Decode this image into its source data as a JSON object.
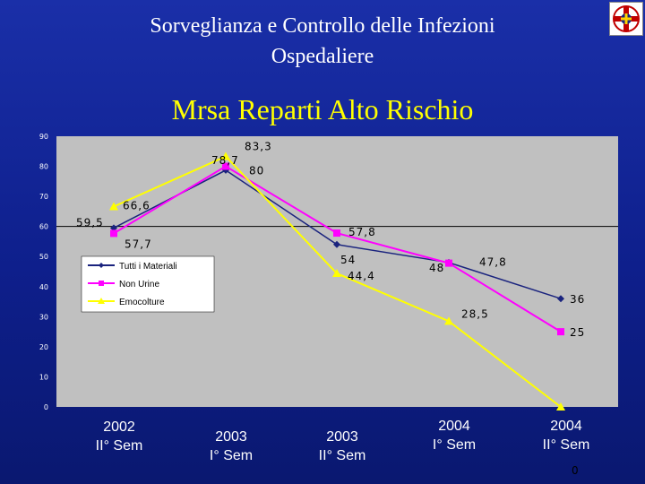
{
  "header": {
    "title_line1": "Sorveglianza e Controllo delle Infezioni",
    "title_line2": "Ospedaliere",
    "logo_icon": "hospital-cross-logo-icon"
  },
  "colors": {
    "background": "#12249a",
    "plot_area": "#c0c0c0",
    "series_tutti": "#1a237e",
    "series_non_urine": "#ff00ff",
    "series_emocolture": "#ffff00",
    "title": "#ffffff",
    "subtitle": "#ffff00"
  },
  "chart_data": {
    "type": "line",
    "title": "Mrsa Reparti Alto Rischio",
    "categories": [
      [
        "2002",
        "II° Sem"
      ],
      [
        "2003",
        "I° Sem"
      ],
      [
        "2003",
        "II° Sem"
      ],
      [
        "2004",
        "I° Sem"
      ],
      [
        "2004",
        "II° Sem"
      ]
    ],
    "ylim": [
      0,
      90
    ],
    "yticks": [
      0,
      10,
      20,
      30,
      40,
      50,
      60,
      70,
      80,
      90
    ],
    "ytick_labels": [
      "0",
      "10",
      "20",
      "30",
      "40",
      "50",
      "60",
      "70",
      "80",
      "90"
    ],
    "grid": false,
    "reference_line": 60,
    "legend_position": "left",
    "series": [
      {
        "name": "Tutti i Materiali",
        "values": [
          59.5,
          78.7,
          54,
          48,
          36
        ],
        "labels": [
          "59,5",
          "78,7",
          "54",
          "48",
          "36"
        ],
        "color": "#1a237e",
        "marker": "diamond"
      },
      {
        "name": "Non Urine",
        "values": [
          57.7,
          80,
          57.8,
          47.8,
          25
        ],
        "labels": [
          "57,7",
          "80",
          "57,8",
          "47,8",
          "25"
        ],
        "color": "#ff00ff",
        "marker": "square"
      },
      {
        "name": "Emocolture",
        "values": [
          66.6,
          83.3,
          44.4,
          28.5,
          0
        ],
        "labels": [
          "66,6",
          "83,3",
          "44,4",
          "28,5",
          "0"
        ],
        "color": "#ffff00",
        "marker": "triangle"
      }
    ]
  }
}
